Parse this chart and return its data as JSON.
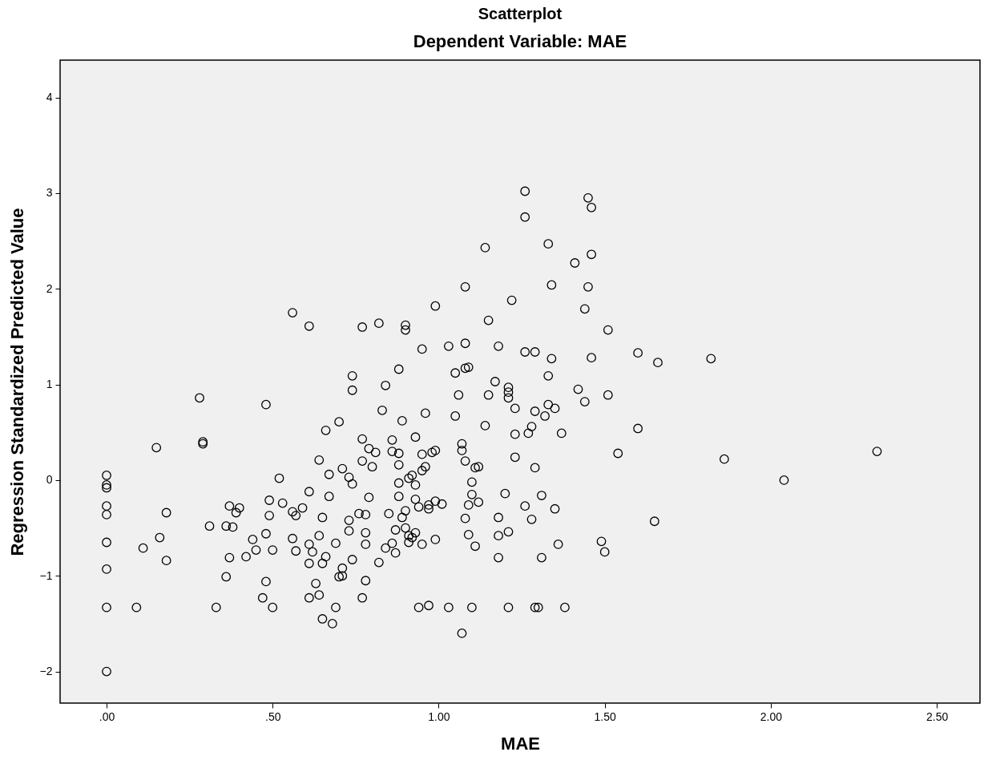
{
  "chart_data": {
    "type": "scatter",
    "title": "Scatterplot",
    "subtitle": "Dependent Variable: MAE",
    "xlabel": "MAE",
    "ylabel": "Regression Standardized Predicted Value",
    "xlim": [
      -0.14,
      2.63
    ],
    "ylim": [
      -2.33,
      4.39
    ],
    "xticks": [
      {
        "value": 0,
        "label": ".00"
      },
      {
        "value": 0.5,
        "label": ".50"
      },
      {
        "value": 1,
        "label": "1.00"
      },
      {
        "value": 1.5,
        "label": "1.50"
      },
      {
        "value": 2,
        "label": "2.00"
      },
      {
        "value": 2.5,
        "label": "2.50"
      }
    ],
    "yticks": [
      -2,
      -1,
      0,
      1,
      2,
      3,
      4
    ],
    "grid": false,
    "marker": "circle",
    "series": [
      {
        "color": "#000000",
        "x": [
          0,
          0,
          0,
          0,
          0,
          0,
          0,
          0,
          0,
          0.09,
          0.11,
          0.15,
          0.16,
          0.18,
          0.18,
          0.28,
          0.29,
          0.29,
          0.31,
          0.33,
          0.36,
          0.37,
          0.37,
          0.36,
          0.38,
          0.39,
          0.4,
          0.42,
          0.44,
          0.45,
          0.47,
          0.48,
          0.48,
          0.48,
          0.49,
          0.49,
          0.5,
          0.5,
          0.52,
          0.53,
          0.56,
          0.56,
          0.56,
          0.57,
          0.57,
          0.59,
          0.61,
          0.61,
          0.61,
          0.61,
          0.61,
          0.62,
          0.63,
          0.64,
          0.64,
          0.64,
          0.65,
          0.65,
          0.65,
          0.66,
          0.66,
          0.67,
          0.67,
          0.68,
          0.69,
          0.69,
          0.7,
          0.7,
          0.71,
          0.71,
          0.71,
          0.73,
          0.73,
          0.73,
          0.74,
          0.74,
          0.74,
          0.74,
          0.76,
          0.77,
          0.77,
          0.77,
          0.77,
          0.78,
          0.78,
          0.78,
          0.78,
          0.79,
          0.79,
          0.8,
          0.81,
          0.82,
          0.82,
          0.83,
          0.84,
          0.84,
          0.85,
          0.86,
          0.86,
          0.86,
          0.87,
          0.87,
          0.88,
          0.88,
          0.88,
          0.88,
          0.88,
          0.89,
          0.89,
          0.9,
          0.9,
          0.9,
          0.9,
          0.91,
          0.91,
          0.91,
          0.92,
          0.92,
          0.93,
          0.93,
          0.93,
          0.93,
          0.94,
          0.94,
          0.95,
          0.95,
          0.95,
          0.95,
          0.96,
          0.96,
          0.97,
          0.97,
          0.97,
          0.98,
          0.99,
          0.99,
          0.99,
          0.99,
          1.01,
          1.03,
          1.03,
          1.05,
          1.05,
          1.06,
          1.07,
          1.07,
          1.07,
          1.08,
          1.08,
          1.08,
          1.08,
          1.08,
          1.09,
          1.09,
          1.09,
          1.1,
          1.1,
          1.1,
          1.11,
          1.11,
          1.12,
          1.12,
          1.14,
          1.14,
          1.15,
          1.15,
          1.17,
          1.18,
          1.18,
          1.18,
          1.18,
          1.2,
          1.21,
          1.21,
          1.21,
          1.21,
          1.21,
          1.22,
          1.23,
          1.23,
          1.23,
          1.26,
          1.26,
          1.26,
          1.26,
          1.27,
          1.28,
          1.28,
          1.29,
          1.29,
          1.29,
          1.29,
          1.3,
          1.31,
          1.31,
          1.32,
          1.33,
          1.33,
          1.33,
          1.34,
          1.34,
          1.35,
          1.35,
          1.36,
          1.37,
          1.38,
          1.41,
          1.42,
          1.44,
          1.44,
          1.45,
          1.45,
          1.46,
          1.46,
          1.46,
          1.49,
          1.5,
          1.51,
          1.51,
          1.54,
          1.6,
          1.6,
          1.65,
          1.66,
          1.82,
          1.86,
          2.04,
          2.32
        ],
        "values": [
          0.05,
          -0.05,
          -0.08,
          -0.27,
          -0.36,
          -0.65,
          -0.93,
          -1.33,
          -2.0,
          -1.33,
          -0.71,
          0.34,
          -0.6,
          -0.34,
          -0.84,
          0.86,
          0.4,
          0.38,
          -0.48,
          -1.33,
          -0.48,
          -0.27,
          -0.81,
          -1.01,
          -0.49,
          -0.34,
          -0.29,
          -0.8,
          -0.62,
          -0.73,
          -1.23,
          -1.06,
          -0.56,
          0.79,
          -0.37,
          -0.21,
          -0.73,
          -1.33,
          0.02,
          -0.24,
          1.75,
          -0.33,
          -0.61,
          -0.37,
          -0.74,
          -0.29,
          1.61,
          -0.12,
          -0.67,
          -0.87,
          -1.23,
          -0.75,
          -1.08,
          -0.58,
          0.21,
          -1.2,
          -0.39,
          -0.87,
          -1.45,
          0.52,
          -0.8,
          0.06,
          -0.17,
          -1.5,
          -0.66,
          -1.33,
          0.61,
          -1.01,
          0.12,
          -0.92,
          -1.0,
          0.03,
          -0.42,
          -0.53,
          1.09,
          0.94,
          -0.04,
          -0.83,
          -0.35,
          1.6,
          0.43,
          0.2,
          -1.23,
          -0.36,
          -0.55,
          -0.67,
          -1.05,
          0.33,
          -0.18,
          0.14,
          0.29,
          1.64,
          -0.86,
          0.73,
          0.99,
          -0.71,
          -0.35,
          0.42,
          0.3,
          -0.66,
          -0.52,
          -0.76,
          1.16,
          0.28,
          0.16,
          -0.03,
          -0.17,
          0.62,
          -0.39,
          1.62,
          1.57,
          -0.32,
          -0.5,
          0.02,
          -0.58,
          -0.65,
          0.05,
          -0.6,
          0.45,
          -0.05,
          -0.55,
          -0.2,
          -1.33,
          -0.28,
          1.37,
          0.27,
          0.1,
          -0.67,
          0.7,
          0.14,
          -1.31,
          -0.26,
          -0.3,
          0.29,
          1.82,
          0.31,
          -0.22,
          -0.62,
          -0.25,
          1.4,
          -1.33,
          1.12,
          0.67,
          0.89,
          0.38,
          0.31,
          -1.6,
          2.02,
          1.43,
          1.17,
          0.2,
          -0.4,
          1.18,
          -0.26,
          -0.57,
          -0.02,
          -0.15,
          -1.33,
          0.13,
          -0.69,
          0.14,
          -0.23,
          2.43,
          0.57,
          1.67,
          0.89,
          1.03,
          1.4,
          -0.39,
          -0.58,
          -0.81,
          -0.14,
          0.97,
          0.92,
          0.86,
          -0.54,
          -1.33,
          1.88,
          0.75,
          0.48,
          0.24,
          3.02,
          2.75,
          1.34,
          -0.27,
          0.49,
          0.56,
          -0.41,
          1.34,
          0.72,
          0.13,
          -1.33,
          -1.33,
          -0.16,
          -0.81,
          0.67,
          2.47,
          1.09,
          0.79,
          2.04,
          1.27,
          0.75,
          -0.3,
          -0.67,
          0.49,
          -1.33,
          2.27,
          0.95,
          1.79,
          0.82,
          2.95,
          2.02,
          2.85,
          2.36,
          1.28,
          -0.64,
          -0.75,
          1.57,
          0.89,
          0.28,
          1.33,
          0.54,
          -0.43,
          1.23,
          1.27,
          0.22,
          0.0,
          0.3
        ]
      }
    ]
  }
}
